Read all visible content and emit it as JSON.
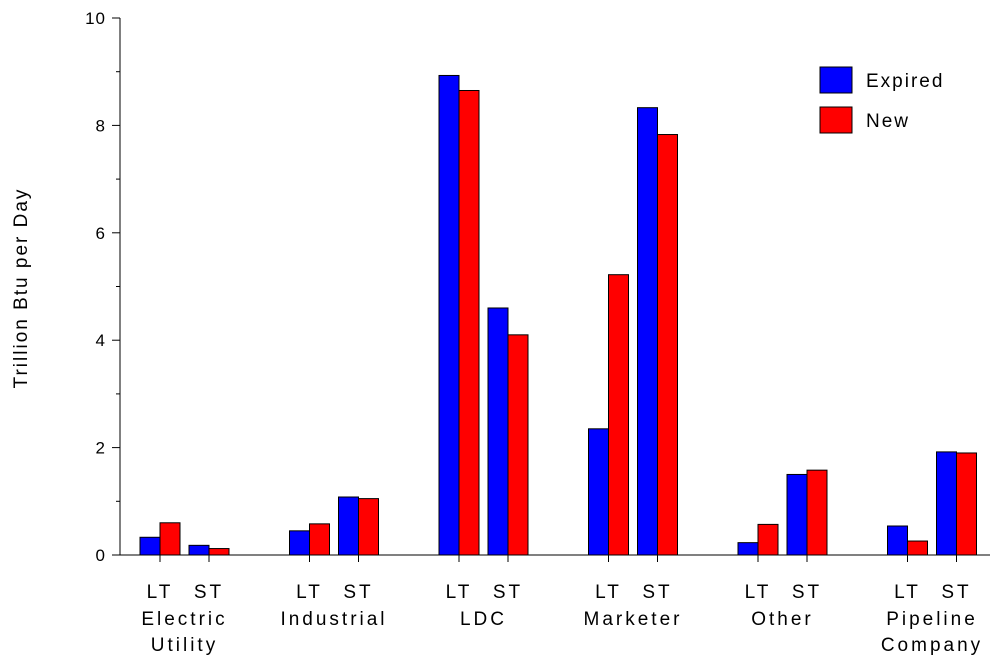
{
  "chart_data": {
    "type": "bar",
    "ylabel": "Trillion Btu per Day",
    "ylim": [
      0,
      10
    ],
    "yticks": [
      0,
      2,
      4,
      6,
      8,
      10
    ],
    "tick_labels": [
      "0",
      "2",
      "4",
      "6",
      "8",
      "10"
    ],
    "groups": [
      {
        "name_lines": [
          "Electric",
          "Utility"
        ],
        "subcategories": [
          "LT",
          "ST"
        ]
      },
      {
        "name_lines": [
          "Industrial"
        ],
        "subcategories": [
          "LT",
          "ST"
        ]
      },
      {
        "name_lines": [
          "LDC"
        ],
        "subcategories": [
          "LT",
          "ST"
        ]
      },
      {
        "name_lines": [
          "Marketer"
        ],
        "subcategories": [
          "LT",
          "ST"
        ]
      },
      {
        "name_lines": [
          "Other"
        ],
        "subcategories": [
          "LT",
          "ST"
        ]
      },
      {
        "name_lines": [
          "Pipeline",
          "Company"
        ],
        "subcategories": [
          "LT",
          "ST"
        ]
      }
    ],
    "series": [
      {
        "name": "Expired",
        "color": "#0000ff",
        "values": [
          0.33,
          0.18,
          0.45,
          1.08,
          8.93,
          4.6,
          2.35,
          8.33,
          0.23,
          1.5,
          0.54,
          1.92
        ]
      },
      {
        "name": "New",
        "color": "#ff0000",
        "values": [
          0.6,
          0.12,
          0.58,
          1.05,
          8.65,
          4.1,
          5.22,
          7.83,
          0.57,
          1.58,
          0.26,
          1.9
        ]
      }
    ],
    "legend_position": "top-right",
    "grid": false
  }
}
